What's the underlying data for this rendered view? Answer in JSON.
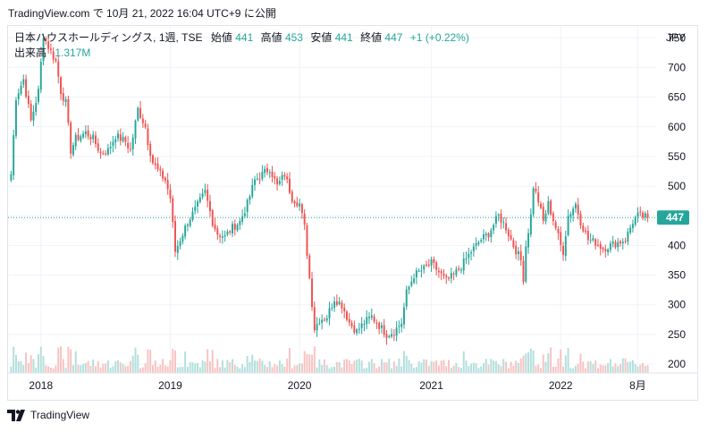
{
  "header": {
    "snapshot_line": "TradingView.com で 10月 21, 2022 16:04 UTC+9 に公開"
  },
  "legend": {
    "symbol": "日本ハウスホールディングス, 1週, TSE",
    "open_label": "始値",
    "open_value": "441",
    "high_label": "高値",
    "high_value": "453",
    "low_label": "安値",
    "low_value": "441",
    "close_label": "終値",
    "close_value": "447",
    "change": "+1 (+0.22%)",
    "volume_label": "出来高",
    "volume_value": "1.317M"
  },
  "currency": "JPY",
  "last_price_badge": "447",
  "footer": {
    "brand": "TradingView"
  },
  "colors": {
    "up": "#26a69a",
    "down": "#ef5350",
    "up_volume": "#b2dfdb",
    "down_volume": "#f7c3c1",
    "last_price_line": "#26a69a",
    "grid": "#f0f3fa",
    "text": "#131722"
  },
  "chart_data": {
    "type": "candlestick",
    "interval": "weekly",
    "ylim": [
      185,
      770
    ],
    "y_ticks": [
      200,
      250,
      300,
      350,
      400,
      450,
      500,
      550,
      600,
      650,
      700,
      750
    ],
    "y_tick_labels": [
      "200",
      "250",
      "300",
      "350",
      "400",
      "",
      "500",
      "550",
      "600",
      "650",
      "700",
      "750"
    ],
    "x_ticks": [
      {
        "label": "2018",
        "week": 12
      },
      {
        "label": "2019",
        "week": 64
      },
      {
        "label": "2020",
        "week": 116
      },
      {
        "label": "2021",
        "week": 169
      },
      {
        "label": "2022",
        "week": 221
      },
      {
        "label": "8月",
        "week": 252
      }
    ],
    "volume_axis_bottom": 200,
    "volume_max_height_units": 50,
    "last_price": 447,
    "anchors": [
      [
        0,
        520
      ],
      [
        2,
        650
      ],
      [
        5,
        680
      ],
      [
        8,
        610
      ],
      [
        11,
        660
      ],
      [
        13,
        755
      ],
      [
        15,
        735
      ],
      [
        18,
        710
      ],
      [
        20,
        660
      ],
      [
        22,
        640
      ],
      [
        24,
        560
      ],
      [
        26,
        580
      ],
      [
        30,
        590
      ],
      [
        33,
        580
      ],
      [
        36,
        555
      ],
      [
        39,
        560
      ],
      [
        42,
        585
      ],
      [
        46,
        575
      ],
      [
        48,
        560
      ],
      [
        51,
        630
      ],
      [
        54,
        600
      ],
      [
        55,
        575
      ],
      [
        57,
        540
      ],
      [
        60,
        520
      ],
      [
        62,
        510
      ],
      [
        64,
        480
      ],
      [
        66,
        390
      ],
      [
        68,
        410
      ],
      [
        71,
        440
      ],
      [
        74,
        460
      ],
      [
        78,
        490
      ],
      [
        81,
        440
      ],
      [
        83,
        420
      ],
      [
        86,
        415
      ],
      [
        89,
        430
      ],
      [
        92,
        440
      ],
      [
        95,
        470
      ],
      [
        98,
        510
      ],
      [
        101,
        520
      ],
      [
        104,
        530
      ],
      [
        107,
        500
      ],
      [
        110,
        520
      ],
      [
        113,
        480
      ],
      [
        116,
        470
      ],
      [
        118,
        430
      ],
      [
        120,
        345
      ],
      [
        122,
        260
      ],
      [
        124,
        275
      ],
      [
        127,
        280
      ],
      [
        130,
        310
      ],
      [
        133,
        300
      ],
      [
        136,
        270
      ],
      [
        139,
        255
      ],
      [
        142,
        270
      ],
      [
        145,
        280
      ],
      [
        148,
        265
      ],
      [
        151,
        250
      ],
      [
        154,
        255
      ],
      [
        157,
        270
      ],
      [
        159,
        320
      ],
      [
        162,
        350
      ],
      [
        166,
        360
      ],
      [
        169,
        370
      ],
      [
        172,
        355
      ],
      [
        175,
        340
      ],
      [
        178,
        350
      ],
      [
        181,
        365
      ],
      [
        185,
        390
      ],
      [
        189,
        410
      ],
      [
        192,
        420
      ],
      [
        196,
        450
      ],
      [
        199,
        430
      ],
      [
        202,
        400
      ],
      [
        205,
        375
      ],
      [
        206,
        345
      ],
      [
        207,
        400
      ],
      [
        209,
        450
      ],
      [
        210,
        500
      ],
      [
        212,
        475
      ],
      [
        214,
        440
      ],
      [
        216,
        470
      ],
      [
        219,
        430
      ],
      [
        221,
        400
      ],
      [
        222,
        390
      ],
      [
        224,
        450
      ],
      [
        227,
        470
      ],
      [
        229,
        440
      ],
      [
        232,
        410
      ],
      [
        235,
        405
      ],
      [
        238,
        395
      ],
      [
        241,
        400
      ],
      [
        244,
        405
      ],
      [
        247,
        410
      ],
      [
        250,
        440
      ],
      [
        252,
        450
      ],
      [
        255,
        448
      ],
      [
        256,
        447
      ]
    ]
  }
}
